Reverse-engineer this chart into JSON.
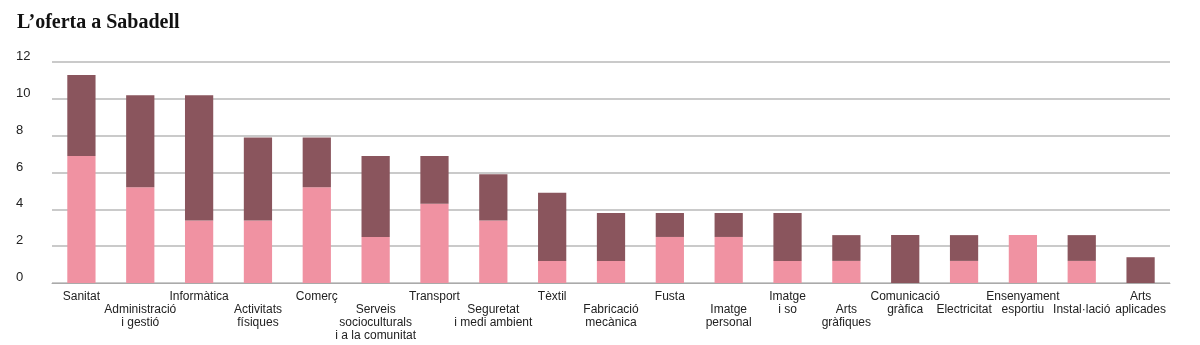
{
  "chart_data": {
    "type": "bar",
    "title": "L’oferta a Sabadell",
    "categories": [
      "Sanitat",
      "Administració\ni gestió",
      "Informàtica",
      "Activitats\nfísiques",
      "Comerç",
      "Serveis\nsocioculturals\ni a la comunitat",
      "Transport",
      "Seguretat\ni medi ambient",
      "Tèxtil",
      "Fabricació\nmecànica",
      "Fusta",
      "Imatge\npersonal",
      "Imatge\ni so",
      "Arts\ngràfiques",
      "Comunicació\ngràfica",
      "Electricitat",
      "Ensenyament\nesportiu",
      "Instal·lació",
      "Arts\naplicades"
    ],
    "series": [
      {
        "color": "#f092a2",
        "values": [
          6.9,
          5.2,
          3.4,
          3.4,
          5.2,
          2.5,
          4.3,
          3.4,
          1.2,
          1.2,
          2.5,
          2.5,
          1.2,
          1.2,
          0,
          1.2,
          2.6,
          1.2,
          0
        ]
      },
      {
        "color": "#8a555d",
        "values": [
          4.4,
          5.0,
          6.8,
          4.5,
          2.7,
          4.4,
          2.6,
          2.5,
          3.7,
          2.6,
          1.3,
          1.3,
          2.6,
          1.4,
          2.6,
          1.4,
          0,
          1.4,
          1.4
        ]
      }
    ],
    "stacked": true,
    "ylim": [
      0,
      12
    ],
    "yticks": [
      0,
      2,
      4,
      6,
      8,
      10,
      12
    ],
    "grid": "y"
  }
}
